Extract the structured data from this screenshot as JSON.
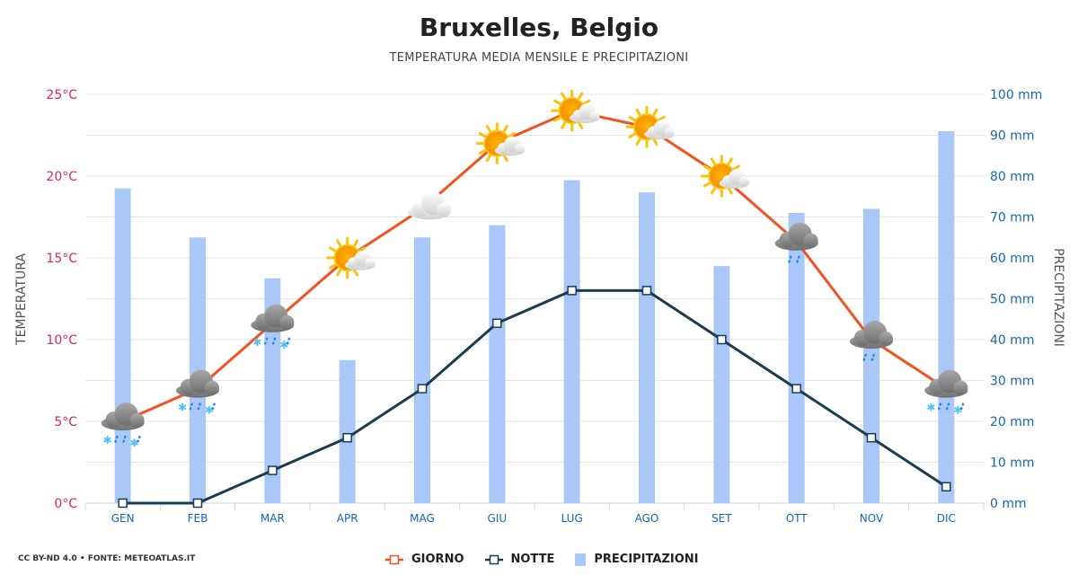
{
  "header": {
    "title": "Bruxelles, Belgio",
    "subtitle": "TEMPERATURA MEDIA MENSILE E PRECIPITAZIONI"
  },
  "footer": {
    "credit": "CC BY-ND 4.0 • FONTE: METEOATLAS.IT"
  },
  "legend": {
    "day": "GIORNO",
    "night": "NOTTE",
    "precip": "PRECIPITAZIONI"
  },
  "colors": {
    "day": "#f4511e",
    "night": "#1b3d4f",
    "precip": "#a9c8f7",
    "left_ticks": "#e0245e",
    "right_ticks": "#1565c0"
  },
  "chart_data": {
    "type": "bar",
    "categories": [
      "GEN",
      "FEB",
      "MAR",
      "APR",
      "MAG",
      "GIU",
      "LUG",
      "AGO",
      "SET",
      "OTT",
      "NOV",
      "DIC"
    ],
    "series": [
      {
        "name": "GIORNO",
        "type": "line",
        "axis": "left",
        "values": [
          5,
          7,
          11,
          15,
          18,
          22,
          24,
          23,
          20,
          16,
          10,
          7
        ]
      },
      {
        "name": "NOTTE",
        "type": "line",
        "axis": "left",
        "values": [
          0,
          0,
          2,
          4,
          7,
          11,
          13,
          13,
          10,
          7,
          4,
          1
        ]
      },
      {
        "name": "PRECIPITAZIONI",
        "type": "bar",
        "axis": "right",
        "values": [
          77,
          65,
          55,
          35,
          65,
          68,
          79,
          76,
          58,
          71,
          72,
          91
        ]
      }
    ],
    "weather_icons": [
      "cloud-snow-rain",
      "cloud-snow-rain",
      "cloud-snow-rain",
      "sun-cloud",
      "cloud",
      "sun-cloud",
      "sun-cloud",
      "sun-cloud",
      "sun-cloud",
      "cloud-rain",
      "cloud-rain",
      "cloud-snow-rain"
    ],
    "ylabel": "TEMPERATURA",
    "ylabel_right": "PRECIPITAZIONI",
    "ylim": [
      0,
      25
    ],
    "ylim_right": [
      0,
      100
    ],
    "yticks": [
      "0°C",
      "5°C",
      "10°C",
      "15°C",
      "20°C",
      "25°C"
    ],
    "yticks_right": [
      "0 mm",
      "10 mm",
      "20 mm",
      "30 mm",
      "40 mm",
      "50 mm",
      "60 mm",
      "70 mm",
      "80 mm",
      "90 mm",
      "100 mm"
    ],
    "grid": true
  }
}
